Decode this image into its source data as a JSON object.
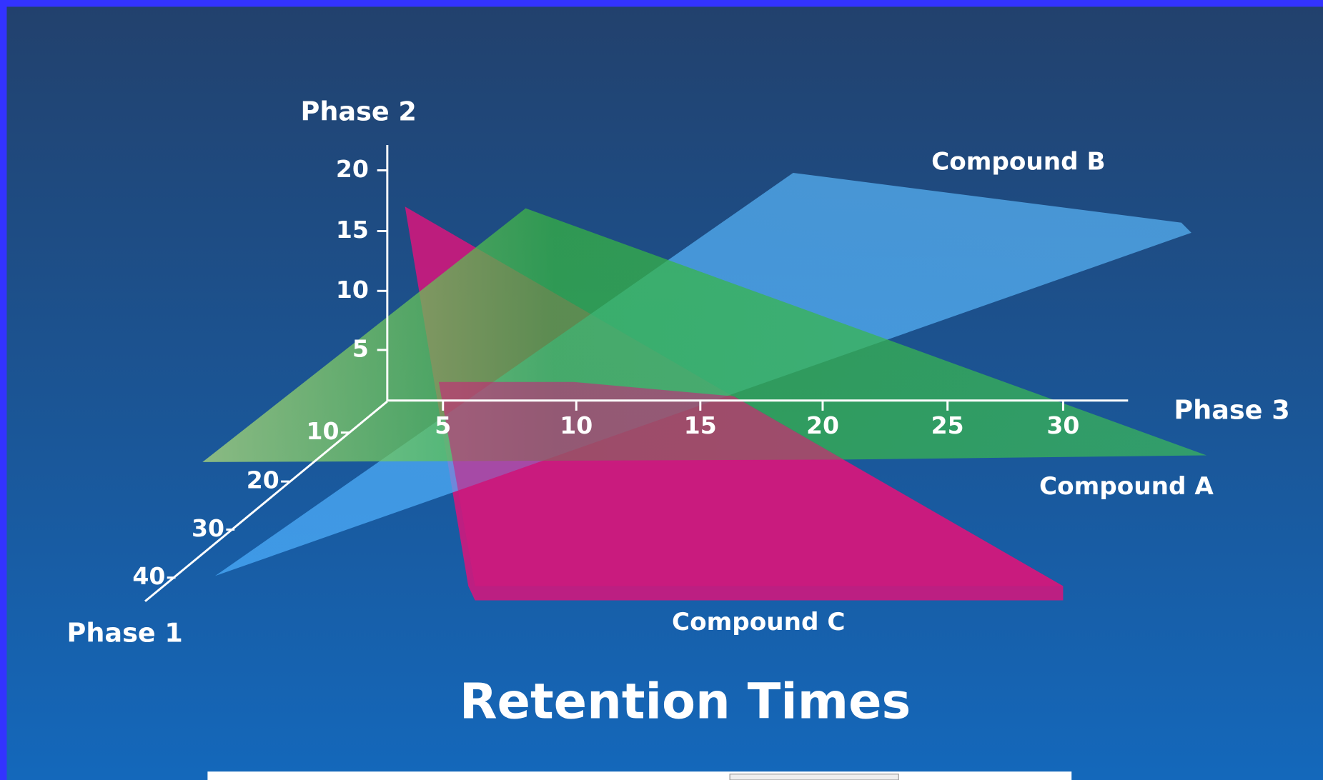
{
  "title": "Retention Times",
  "axes": {
    "phase_2": {
      "title": "Phase 2",
      "ticks": [
        "20",
        "15",
        "10",
        "5"
      ]
    },
    "phase_3": {
      "title": "Phase 3",
      "ticks": [
        "5",
        "10",
        "15",
        "20",
        "25",
        "30"
      ]
    },
    "phase_1": {
      "title": "Phase 1",
      "ticks": [
        "10",
        "20",
        "30",
        "40"
      ]
    }
  },
  "compounds": [
    "Compound A",
    "Compound B",
    "Compound C"
  ]
}
